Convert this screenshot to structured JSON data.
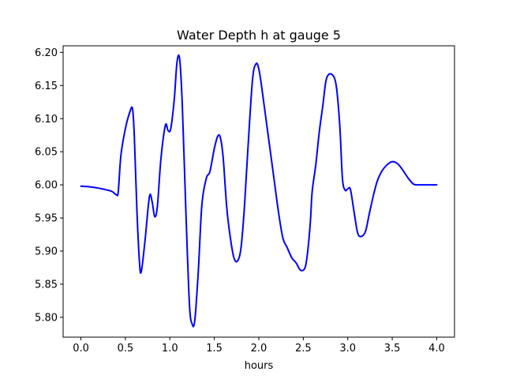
{
  "chart_data": {
    "type": "line",
    "title": "Water Depth h at gauge 5",
    "xlabel": "hours",
    "ylabel": "",
    "xlim": [
      -0.2,
      4.2
    ],
    "ylim": [
      5.77,
      6.21
    ],
    "xticks": [
      "0.0",
      "0.5",
      "1.0",
      "1.5",
      "2.0",
      "2.5",
      "3.0",
      "3.5",
      "4.0"
    ],
    "yticks": [
      "5.80",
      "5.85",
      "5.90",
      "5.95",
      "6.00",
      "6.05",
      "6.10",
      "6.15",
      "6.20"
    ],
    "grid": false,
    "series": [
      {
        "color": "#0000ff",
        "x": [
          0.0,
          0.1,
          0.2,
          0.3,
          0.35,
          0.4,
          0.42,
          0.45,
          0.5,
          0.55,
          0.58,
          0.6,
          0.63,
          0.66,
          0.68,
          0.72,
          0.77,
          0.8,
          0.83,
          0.86,
          0.9,
          0.95,
          0.98,
          1.01,
          1.05,
          1.08,
          1.11,
          1.14,
          1.18,
          1.22,
          1.25,
          1.28,
          1.32,
          1.36,
          1.41,
          1.45,
          1.5,
          1.54,
          1.57,
          1.6,
          1.64,
          1.68,
          1.72,
          1.76,
          1.8,
          1.84,
          1.88,
          1.93,
          1.97,
          2.0,
          2.03,
          2.07,
          2.12,
          2.17,
          2.22,
          2.27,
          2.32,
          2.37,
          2.42,
          2.47,
          2.52,
          2.55,
          2.58,
          2.6,
          2.64,
          2.68,
          2.72,
          2.76,
          2.82,
          2.87,
          2.91,
          2.94,
          2.97,
          3.0,
          3.03,
          3.07,
          3.11,
          3.15,
          3.2,
          3.24,
          3.29,
          3.33,
          3.38,
          3.44,
          3.5,
          3.56,
          3.62,
          3.68,
          3.74,
          3.8,
          3.86,
          3.92,
          4.0
        ],
        "y": [
          5.998,
          5.997,
          5.995,
          5.992,
          5.99,
          5.985,
          5.99,
          6.045,
          6.085,
          6.11,
          6.115,
          6.075,
          5.96,
          5.88,
          5.87,
          5.915,
          5.982,
          5.975,
          5.952,
          5.968,
          6.04,
          6.09,
          6.082,
          6.085,
          6.13,
          6.185,
          6.19,
          6.12,
          5.96,
          5.82,
          5.79,
          5.795,
          5.87,
          5.97,
          6.01,
          6.02,
          6.055,
          6.074,
          6.07,
          6.04,
          5.965,
          5.92,
          5.89,
          5.885,
          5.905,
          5.97,
          6.06,
          6.16,
          6.183,
          6.175,
          6.15,
          6.11,
          6.06,
          6.01,
          5.96,
          5.92,
          5.905,
          5.89,
          5.882,
          5.871,
          5.875,
          5.9,
          5.945,
          5.99,
          6.03,
          6.08,
          6.12,
          6.16,
          6.167,
          6.15,
          6.09,
          6.01,
          5.992,
          5.994,
          5.993,
          5.96,
          5.928,
          5.922,
          5.93,
          5.955,
          5.985,
          6.005,
          6.02,
          6.03,
          6.035,
          6.032,
          6.022,
          6.01,
          6.001,
          6.0,
          6.0,
          6.0,
          6.0
        ]
      }
    ]
  }
}
